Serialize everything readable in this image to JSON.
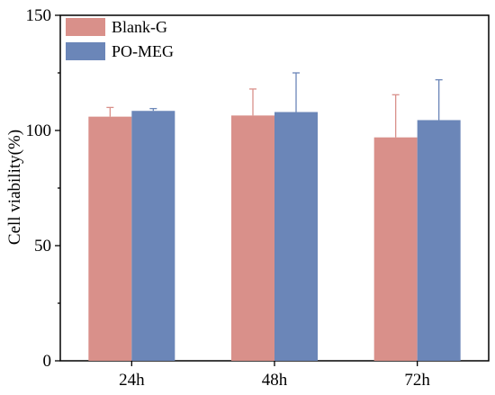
{
  "chart_data": {
    "type": "bar",
    "title": "",
    "xlabel": "",
    "ylabel": "Cell viability(%)",
    "ylim": [
      0,
      150
    ],
    "yticks": [
      0,
      50,
      100,
      150
    ],
    "categories": [
      "24h",
      "48h",
      "72h"
    ],
    "series": [
      {
        "name": "Blank-G",
        "color": "#d9908a",
        "values": [
          106,
          106.5,
          97
        ],
        "errors": [
          4,
          11.5,
          18.5
        ]
      },
      {
        "name": "PO-MEG",
        "color": "#6b86b8",
        "values": [
          108.5,
          108,
          104.5
        ],
        "errors": [
          1,
          17,
          17.5
        ]
      }
    ],
    "legend": "top-left",
    "error_bars": "upper only",
    "grid": false
  }
}
